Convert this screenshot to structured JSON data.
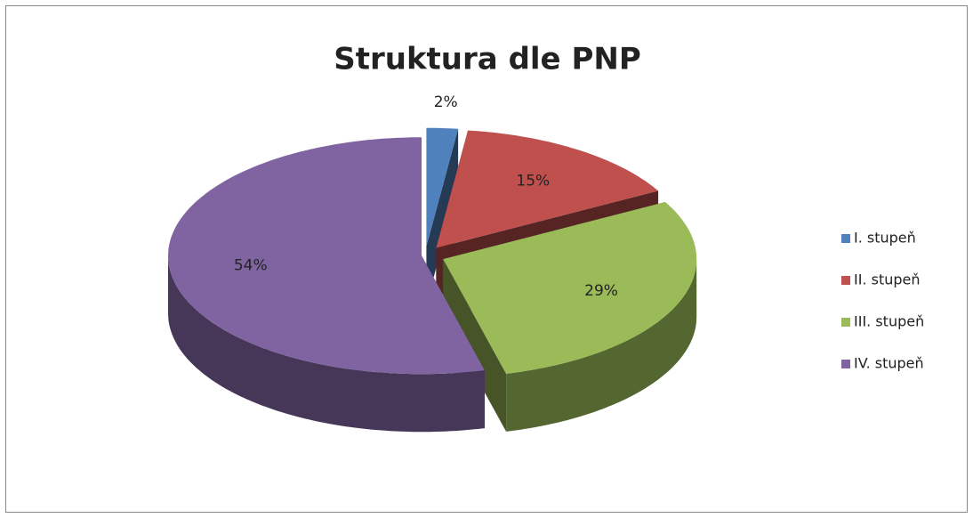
{
  "chart_data": {
    "type": "pie",
    "title": "Struktura dle PNP",
    "categories": [
      "I. stupeň",
      "II. stupeň",
      "III. stupeň",
      "IV. stupeň"
    ],
    "values": [
      2,
      15,
      29,
      54
    ],
    "value_labels": [
      "2%",
      "15%",
      "29%",
      "54%"
    ],
    "colors": [
      "#4f81bd",
      "#c0504d",
      "#9bbb59",
      "#8064a2"
    ],
    "legend": "right"
  }
}
